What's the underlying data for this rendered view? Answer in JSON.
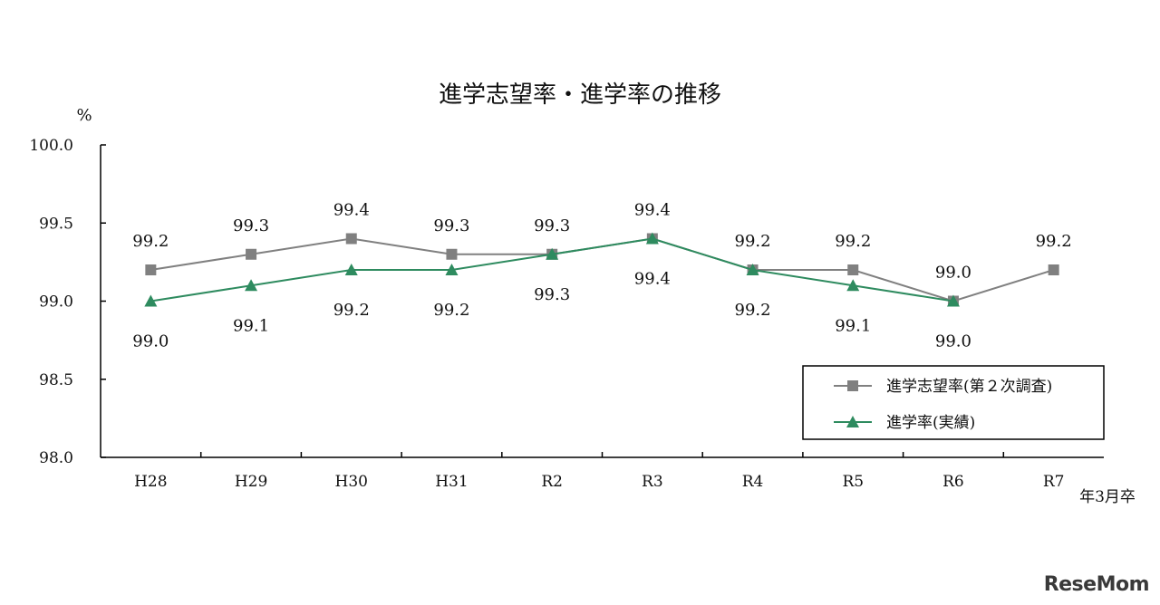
{
  "chart_data": {
    "type": "line",
    "title": "進学志望率・進学率の推移",
    "ylabel": "%",
    "x_note": "年3月卒",
    "ylim": [
      98.0,
      100.0
    ],
    "yticks": [
      "98.0",
      "98.5",
      "99.0",
      "99.5",
      "100.0"
    ],
    "categories": [
      "H28",
      "H29",
      "H30",
      "H31",
      "R2",
      "R3",
      "R4",
      "R5",
      "R6",
      "R7"
    ],
    "series": [
      {
        "name": "進学志望率(第２次調査)",
        "color": "#808080",
        "marker": "square",
        "values": [
          99.2,
          99.3,
          99.4,
          99.3,
          99.3,
          99.4,
          99.2,
          99.2,
          99.0,
          99.2
        ],
        "labels": [
          "99.2",
          "99.3",
          "99.4",
          "99.3",
          "99.3",
          "99.4",
          "99.2",
          "99.2",
          "99.0",
          "99.2"
        ]
      },
      {
        "name": "進学率(実績)",
        "color": "#2e8b5f",
        "marker": "triangle",
        "values": [
          99.0,
          99.1,
          99.2,
          99.2,
          99.3,
          99.4,
          99.2,
          99.1,
          99.0,
          null
        ],
        "labels": [
          "99.0",
          "99.1",
          "99.2",
          "99.2",
          "99.3",
          "99.4",
          "99.2",
          "99.1",
          "99.0",
          null
        ]
      }
    ],
    "legend_position": "bottom-right",
    "grid": false
  },
  "watermark": {
    "text": "ReseMom"
  }
}
